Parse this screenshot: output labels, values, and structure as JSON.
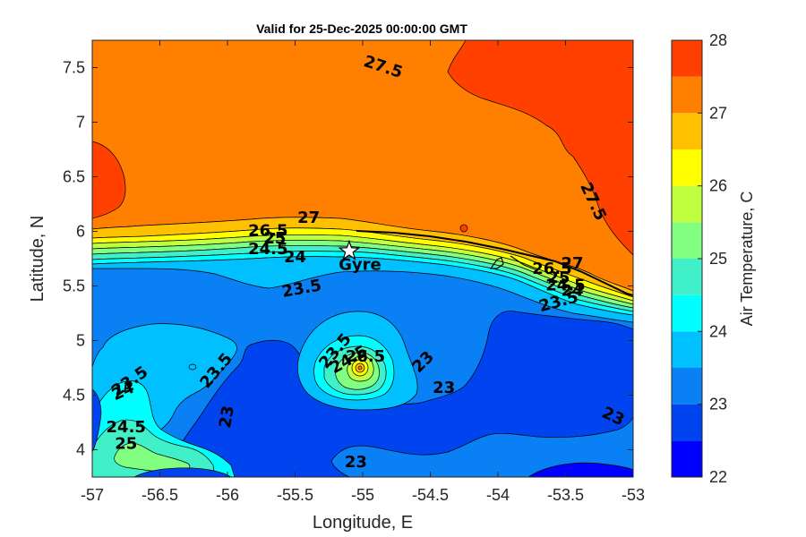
{
  "chart_data": {
    "type": "contour",
    "title": "Valid for 25-Dec-2025 00:00:00 GMT",
    "xlabel": "Longitude, E",
    "ylabel": "Latitude, N",
    "xlim": [
      -57,
      -53
    ],
    "ylim": [
      3.75,
      7.75
    ],
    "xticks": [
      "-57",
      "-56.5",
      "-56",
      "-55.5",
      "-55",
      "-54.5",
      "-54",
      "-53.5",
      "-53"
    ],
    "yticks": [
      "7.5",
      "7",
      "6.5",
      "6",
      "5.5",
      "5",
      "4.5",
      "4"
    ],
    "xtick_values": [
      -57,
      -56.5,
      -56,
      -55.5,
      -55,
      -54.5,
      -54,
      -53.5,
      -53
    ],
    "ytick_values": [
      7.5,
      7,
      6.5,
      6,
      5.5,
      5,
      4.5,
      4
    ],
    "colorbar": {
      "label": "Air Temperature, C",
      "range": [
        22,
        28
      ],
      "ticks": [
        "28",
        "27",
        "26",
        "25",
        "24",
        "23",
        "22"
      ],
      "tick_values": [
        28,
        27,
        26,
        25,
        24,
        23,
        22
      ],
      "levels": [
        22,
        22.5,
        23,
        23.5,
        24,
        24.5,
        25,
        25.5,
        26,
        26.5,
        27,
        27.5,
        28
      ],
      "colors": [
        "#0000ff",
        "#0044f0",
        "#0a80f5",
        "#00c0ff",
        "#00ffff",
        "#40f0c8",
        "#80ff80",
        "#c0ff40",
        "#ffff00",
        "#ffc000",
        "#ff8000",
        "#ff4000",
        "#ff0000"
      ]
    },
    "marker": {
      "label": "Gyre",
      "lon": -55.1,
      "lat": 5.82,
      "symbol": "star"
    },
    "contour_labels": [
      {
        "text": "27.5",
        "lon": -54.85,
        "lat": 7.5,
        "rot": 18
      },
      {
        "text": "27.5",
        "lon": -53.3,
        "lat": 6.27,
        "rot": 65
      },
      {
        "text": "27",
        "lon": -55.4,
        "lat": 6.12,
        "rot": 0
      },
      {
        "text": "26.5",
        "lon": -55.7,
        "lat": 6.0,
        "rot": 0
      },
      {
        "text": "25",
        "lon": -55.65,
        "lat": 5.93,
        "rot": 0
      },
      {
        "text": "24.5",
        "lon": -55.7,
        "lat": 5.83,
        "rot": 0
      },
      {
        "text": "24",
        "lon": -55.5,
        "lat": 5.76,
        "rot": 0
      },
      {
        "text": "23.5",
        "lon": -55.45,
        "lat": 5.47,
        "rot": -10
      },
      {
        "text": "27",
        "lon": -53.45,
        "lat": 5.7,
        "rot": 0
      },
      {
        "text": "26.5",
        "lon": -53.6,
        "lat": 5.65,
        "rot": 0
      },
      {
        "text": "25",
        "lon": -53.55,
        "lat": 5.57,
        "rot": 0
      },
      {
        "text": "24.5",
        "lon": -53.5,
        "lat": 5.5,
        "rot": 0
      },
      {
        "text": "24",
        "lon": -53.45,
        "lat": 5.45,
        "rot": 0
      },
      {
        "text": "23.5",
        "lon": -53.55,
        "lat": 5.35,
        "rot": -15
      },
      {
        "text": "23.5",
        "lon": -55.2,
        "lat": 4.9,
        "rot": -50
      },
      {
        "text": "24.5",
        "lon": -55.1,
        "lat": 4.82,
        "rot": -30
      },
      {
        "text": "26.5",
        "lon": -54.98,
        "lat": 4.85,
        "rot": 0
      },
      {
        "text": "23",
        "lon": -54.55,
        "lat": 4.8,
        "rot": -45
      },
      {
        "text": "23.5",
        "lon": -56.08,
        "lat": 4.72,
        "rot": -50
      },
      {
        "text": "23.5",
        "lon": -56.72,
        "lat": 4.62,
        "rot": -35
      },
      {
        "text": "24",
        "lon": -56.77,
        "lat": 4.53,
        "rot": -25
      },
      {
        "text": "24.5",
        "lon": -56.75,
        "lat": 4.2,
        "rot": 0
      },
      {
        "text": "25",
        "lon": -56.75,
        "lat": 4.05,
        "rot": 0
      },
      {
        "text": "23",
        "lon": -56.0,
        "lat": 4.3,
        "rot": -80
      },
      {
        "text": "23",
        "lon": -54.4,
        "lat": 4.56,
        "rot": 0
      },
      {
        "text": "23",
        "lon": -53.15,
        "lat": 4.3,
        "rot": 25
      },
      {
        "text": "23",
        "lon": -55.05,
        "lat": 3.88,
        "rot": 0
      }
    ]
  }
}
